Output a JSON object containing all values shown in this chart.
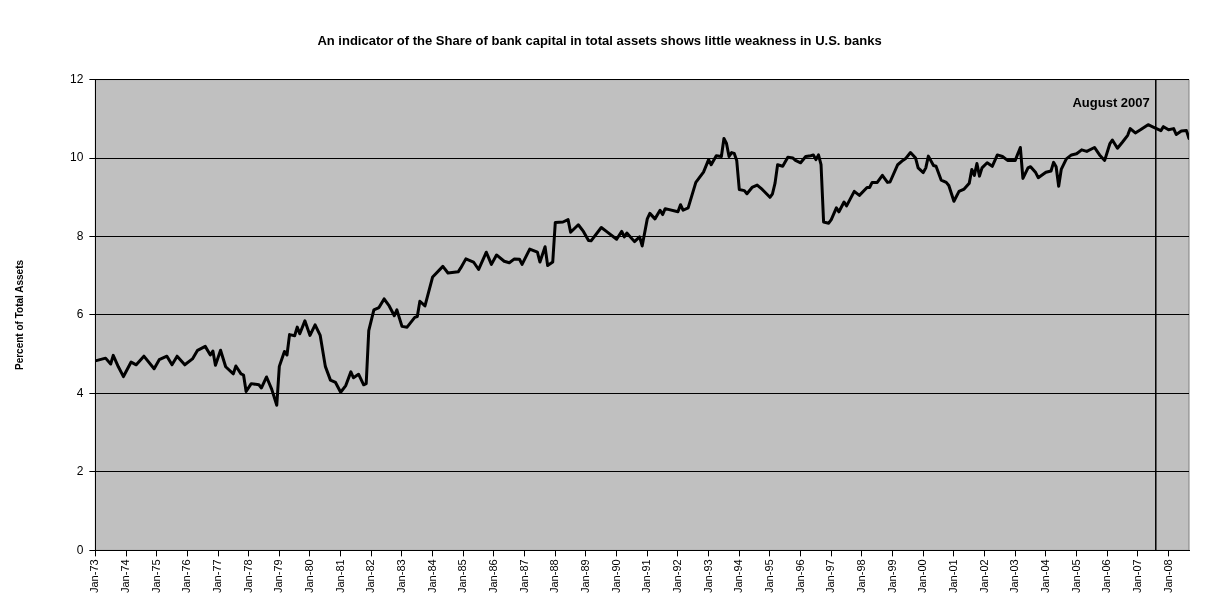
{
  "chart_data": {
    "type": "line",
    "title": "An indicator of the Share of bank capital in total assets shows little weakness in U.S. banks",
    "ylabel": "Percent of Total Assets",
    "x": [
      "1973-01",
      "1973-05",
      "1973-07",
      "1973-08",
      "1973-10",
      "1973-12",
      "1974-03",
      "1974-05",
      "1974-08",
      "1974-12",
      "1975-02",
      "1975-05",
      "1975-07",
      "1975-09",
      "1975-12",
      "1976-03",
      "1976-05",
      "1976-08",
      "1976-10",
      "1976-11",
      "1976-12",
      "1977-02",
      "1977-04",
      "1977-07",
      "1977-08",
      "1977-10",
      "1977-11",
      "1977-12",
      "1978-02",
      "1978-05",
      "1978-06",
      "1978-08",
      "1978-10",
      "1978-12",
      "1979-01",
      "1979-03",
      "1979-04",
      "1979-05",
      "1979-07",
      "1979-08",
      "1979-09",
      "1979-11",
      "1980-01",
      "1980-03",
      "1980-05",
      "1980-07",
      "1980-09",
      "1980-11",
      "1981-01",
      "1981-03",
      "1981-05",
      "1981-06",
      "1981-08",
      "1981-10",
      "1981-11",
      "1981-12",
      "1982-02",
      "1982-04",
      "1982-06",
      "1982-08",
      "1982-10",
      "1982-11",
      "1983-01",
      "1983-03",
      "1983-06",
      "1983-07",
      "1983-08",
      "1983-10",
      "1984-01",
      "1984-05",
      "1984-07",
      "1984-11",
      "1984-12",
      "1985-02",
      "1985-05",
      "1985-07",
      "1985-10",
      "1985-12",
      "1986-02",
      "1986-05",
      "1986-07",
      "1986-09",
      "1986-11",
      "1986-12",
      "1987-03",
      "1987-06",
      "1987-07",
      "1987-09",
      "1987-10",
      "1987-12",
      "1988-01",
      "1988-04",
      "1988-06",
      "1988-07",
      "1988-10",
      "1988-12",
      "1989-02",
      "1989-03",
      "1989-07",
      "1989-09",
      "1990-01",
      "1990-03",
      "1990-04",
      "1990-05",
      "1990-08",
      "1990-10",
      "1990-11",
      "1991-01",
      "1991-02",
      "1991-04",
      "1991-06",
      "1991-07",
      "1991-08",
      "1992-01",
      "1992-02",
      "1992-03",
      "1992-05",
      "1992-08",
      "1992-11",
      "1993-01",
      "1993-02",
      "1993-04",
      "1993-06",
      "1993-07",
      "1993-08",
      "1993-09",
      "1993-10",
      "1993-11",
      "1993-12",
      "1994-01",
      "1994-03",
      "1994-04",
      "1994-06",
      "1994-08",
      "1994-10",
      "1995-01",
      "1995-02",
      "1995-03",
      "1995-04",
      "1995-06",
      "1995-08",
      "1995-10",
      "1995-11",
      "1996-01",
      "1996-03",
      "1996-05",
      "1996-06",
      "1996-07",
      "1996-08",
      "1996-09",
      "1996-10",
      "1996-12",
      "1997-01",
      "1997-03",
      "1997-04",
      "1997-06",
      "1997-07",
      "1997-10",
      "1997-12",
      "1998-03",
      "1998-04",
      "1998-05",
      "1998-07",
      "1998-09",
      "1998-11",
      "1998-12",
      "1999-03",
      "1999-05",
      "1999-06",
      "1999-08",
      "1999-10",
      "1999-11",
      "2000-01",
      "2000-02",
      "2000-03",
      "2000-05",
      "2000-06",
      "2000-08",
      "2000-10",
      "2000-11",
      "2001-01",
      "2001-03",
      "2001-05",
      "2001-07",
      "2001-08",
      "2001-09",
      "2001-10",
      "2001-11",
      "2001-12",
      "2002-02",
      "2002-04",
      "2002-06",
      "2002-08",
      "2002-10",
      "2003-01",
      "2003-03",
      "2003-04",
      "2003-06",
      "2003-07",
      "2003-09",
      "2003-10",
      "2004-01",
      "2004-03",
      "2004-04",
      "2004-05",
      "2004-06",
      "2004-07",
      "2004-09",
      "2004-11",
      "2005-01",
      "2005-03",
      "2005-05",
      "2005-08",
      "2005-10",
      "2005-12",
      "2006-02",
      "2006-03",
      "2006-05",
      "2006-07",
      "2006-09",
      "2006-10",
      "2006-12",
      "2007-02",
      "2007-05",
      "2007-07",
      "2007-10",
      "2007-11",
      "2008-01",
      "2008-03",
      "2008-04",
      "2008-06",
      "2008-08",
      "2008-09"
    ],
    "series": [
      {
        "color": "#000000",
        "values": [
          4.83,
          4.9,
          4.75,
          4.97,
          4.68,
          4.43,
          4.8,
          4.73,
          4.95,
          4.63,
          4.86,
          4.95,
          4.73,
          4.95,
          4.73,
          4.88,
          5.1,
          5.2,
          4.98,
          5.08,
          4.72,
          5.1,
          4.68,
          4.5,
          4.7,
          4.5,
          4.47,
          4.05,
          4.25,
          4.22,
          4.14,
          4.42,
          4.11,
          3.7,
          4.69,
          5.07,
          4.98,
          5.5,
          5.47,
          5.69,
          5.52,
          5.85,
          5.48,
          5.75,
          5.48,
          4.69,
          4.34,
          4.28,
          4.03,
          4.2,
          4.55,
          4.4,
          4.49,
          4.22,
          4.25,
          5.6,
          6.13,
          6.19,
          6.41,
          6.23,
          5.98,
          6.13,
          5.71,
          5.69,
          5.94,
          5.96,
          6.35,
          6.23,
          6.97,
          7.24,
          7.07,
          7.1,
          7.2,
          7.43,
          7.35,
          7.16,
          7.6,
          7.29,
          7.53,
          7.37,
          7.33,
          7.43,
          7.42,
          7.29,
          7.68,
          7.6,
          7.35,
          7.74,
          7.26,
          7.35,
          8.36,
          8.37,
          8.43,
          8.11,
          8.3,
          8.13,
          7.9,
          7.89,
          8.23,
          8.13,
          7.93,
          8.13,
          7.99,
          8.09,
          7.87,
          7.99,
          7.76,
          8.45,
          8.59,
          8.45,
          8.67,
          8.56,
          8.71,
          8.63,
          8.81,
          8.67,
          8.73,
          9.38,
          9.64,
          9.96,
          9.83,
          10.06,
          10.04,
          10.5,
          10.37,
          10.04,
          10.14,
          10.12,
          9.94,
          9.2,
          9.17,
          9.09,
          9.25,
          9.31,
          9.2,
          9.0,
          9.09,
          9.36,
          9.83,
          9.79,
          10.02,
          10.0,
          9.94,
          9.88,
          10.04,
          10.06,
          10.08,
          9.96,
          10.08,
          9.83,
          8.37,
          8.34,
          8.43,
          8.73,
          8.63,
          8.88,
          8.78,
          9.15,
          9.05,
          9.25,
          9.25,
          9.38,
          9.38,
          9.56,
          9.38,
          9.39,
          9.83,
          9.94,
          9.98,
          10.14,
          10.0,
          9.75,
          9.63,
          9.75,
          10.05,
          9.81,
          9.79,
          9.44,
          9.38,
          9.3,
          8.9,
          9.15,
          9.21,
          9.36,
          9.71,
          9.56,
          9.86,
          9.54,
          9.75,
          9.88,
          9.79,
          10.08,
          10.04,
          9.94,
          9.94,
          10.27,
          9.48,
          9.75,
          9.78,
          9.63,
          9.5,
          9.64,
          9.67,
          9.89,
          9.78,
          9.28,
          9.71,
          9.98,
          10.08,
          10.11,
          10.21,
          10.17,
          10.27,
          10.08,
          9.94,
          10.36,
          10.46,
          10.25,
          10.41,
          10.58,
          10.75,
          10.64,
          10.72,
          10.85,
          10.79,
          10.7,
          10.8,
          10.72,
          10.75,
          10.6,
          10.69,
          10.7,
          10.5
        ]
      }
    ],
    "xlim": [
      "1973-01",
      "2008-09"
    ],
    "xticks": [
      {
        "value": "1973-01",
        "label": "Jan-73"
      },
      {
        "value": "1974-01",
        "label": "Jan-74"
      },
      {
        "value": "1975-01",
        "label": "Jan-75"
      },
      {
        "value": "1976-01",
        "label": "Jan-76"
      },
      {
        "value": "1977-01",
        "label": "Jan-77"
      },
      {
        "value": "1978-01",
        "label": "Jan-78"
      },
      {
        "value": "1979-01",
        "label": "Jan-79"
      },
      {
        "value": "1980-01",
        "label": "Jan-80"
      },
      {
        "value": "1981-01",
        "label": "Jan-81"
      },
      {
        "value": "1982-01",
        "label": "Jan-82"
      },
      {
        "value": "1983-01",
        "label": "Jan-83"
      },
      {
        "value": "1984-01",
        "label": "Jan-84"
      },
      {
        "value": "1985-01",
        "label": "Jan-85"
      },
      {
        "value": "1986-01",
        "label": "Jan-86"
      },
      {
        "value": "1987-01",
        "label": "Jan-87"
      },
      {
        "value": "1988-01",
        "label": "Jan-88"
      },
      {
        "value": "1989-01",
        "label": "Jan-89"
      },
      {
        "value": "1990-01",
        "label": "Jan-90"
      },
      {
        "value": "1991-01",
        "label": "Jan-91"
      },
      {
        "value": "1992-01",
        "label": "Jan-92"
      },
      {
        "value": "1993-01",
        "label": "Jan-93"
      },
      {
        "value": "1994-01",
        "label": "Jan-94"
      },
      {
        "value": "1995-01",
        "label": "Jan-95"
      },
      {
        "value": "1996-01",
        "label": "Jan-96"
      },
      {
        "value": "1997-01",
        "label": "Jan-97"
      },
      {
        "value": "1998-01",
        "label": "Jan-98"
      },
      {
        "value": "1999-01",
        "label": "Jan-99"
      },
      {
        "value": "2000-01",
        "label": "Jan-00"
      },
      {
        "value": "2001-01",
        "label": "Jan-01"
      },
      {
        "value": "2002-01",
        "label": "Jan-02"
      },
      {
        "value": "2003-01",
        "label": "Jan-03"
      },
      {
        "value": "2004-01",
        "label": "Jan-04"
      },
      {
        "value": "2005-01",
        "label": "Jan-05"
      },
      {
        "value": "2006-01",
        "label": "Jan-06"
      },
      {
        "value": "2007-01",
        "label": "Jan-07"
      },
      {
        "value": "2008-01",
        "label": "Jan-08"
      }
    ],
    "ylim": [
      0,
      12
    ],
    "yticks": [
      0,
      2,
      4,
      6,
      8,
      10,
      12
    ],
    "grid": "y",
    "legend": false,
    "marker": "none",
    "line_style": "solid",
    "ref_lines": [
      {
        "axis": "x",
        "value": "2007-08",
        "label": "August 2007",
        "color": "#000000"
      }
    ]
  }
}
